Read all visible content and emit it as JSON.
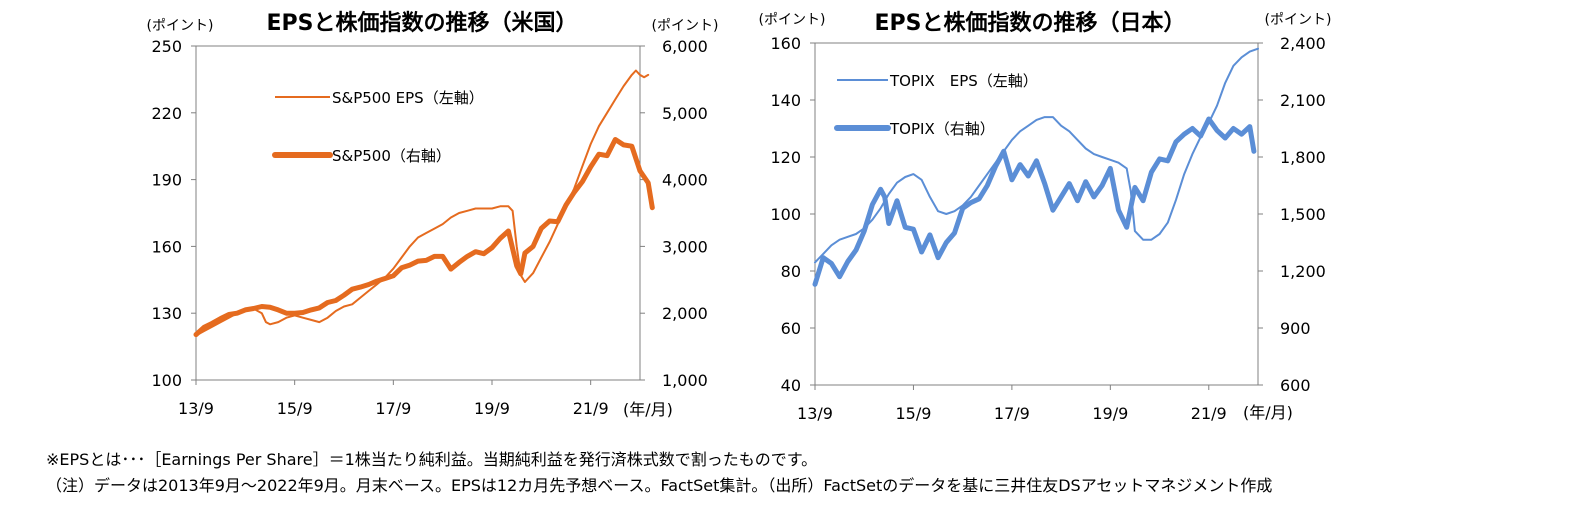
{
  "chart_data": [
    {
      "type": "line",
      "title": "EPSと株価指数の推移（米国）",
      "left_unit": "(ポイント)",
      "right_unit": "(ポイント)",
      "x_unit": "(年/月)",
      "x_ticks": [
        "13/9",
        "15/9",
        "17/9",
        "19/9",
        "21/9"
      ],
      "x_tick_months": [
        0,
        24,
        48,
        72,
        96
      ],
      "x_range": [
        0,
        108
      ],
      "left_axis": {
        "min": 100,
        "max": 250,
        "ticks": [
          "100",
          "130",
          "160",
          "190",
          "220",
          "250"
        ],
        "tick_values": [
          100,
          130,
          160,
          190,
          220,
          250
        ]
      },
      "right_axis": {
        "min": 1000,
        "max": 6000,
        "ticks": [
          "1,000",
          "2,000",
          "3,000",
          "4,000",
          "5,000",
          "6,000"
        ],
        "tick_values": [
          1000,
          2000,
          3000,
          4000,
          5000,
          6000
        ]
      },
      "color": "#E56B1F",
      "series": [
        {
          "name": "S&P500 EPS（左軸）",
          "axis": "left",
          "style": "thin",
          "points": [
            [
              0,
              120
            ],
            [
              2,
              122
            ],
            [
              4,
              124
            ],
            [
              6,
              126
            ],
            [
              8,
              128
            ],
            [
              10,
              130
            ],
            [
              12,
              131
            ],
            [
              14,
              132
            ],
            [
              16,
              130
            ],
            [
              17,
              126
            ],
            [
              18,
              125
            ],
            [
              20,
              126
            ],
            [
              22,
              128
            ],
            [
              24,
              129
            ],
            [
              26,
              128
            ],
            [
              28,
              127
            ],
            [
              30,
              126
            ],
            [
              32,
              128
            ],
            [
              34,
              131
            ],
            [
              36,
              133
            ],
            [
              38,
              134
            ],
            [
              40,
              137
            ],
            [
              42,
              140
            ],
            [
              44,
              143
            ],
            [
              46,
              146
            ],
            [
              48,
              150
            ],
            [
              50,
              155
            ],
            [
              52,
              160
            ],
            [
              54,
              164
            ],
            [
              56,
              166
            ],
            [
              58,
              168
            ],
            [
              60,
              170
            ],
            [
              62,
              173
            ],
            [
              64,
              175
            ],
            [
              66,
              176
            ],
            [
              68,
              177
            ],
            [
              70,
              177
            ],
            [
              72,
              177
            ],
            [
              74,
              178
            ],
            [
              76,
              178
            ],
            [
              77,
              176
            ],
            [
              78,
              160
            ],
            [
              79,
              147
            ],
            [
              80,
              144
            ],
            [
              82,
              148
            ],
            [
              84,
              155
            ],
            [
              86,
              162
            ],
            [
              88,
              170
            ],
            [
              90,
              178
            ],
            [
              92,
              186
            ],
            [
              94,
              196
            ],
            [
              96,
              206
            ],
            [
              98,
              214
            ],
            [
              100,
              220
            ],
            [
              102,
              226
            ],
            [
              104,
              232
            ],
            [
              106,
              237
            ],
            [
              107,
              239
            ],
            [
              108,
              237
            ],
            [
              109,
              236
            ],
            [
              110,
              237
            ]
          ]
        },
        {
          "name": "S&P500（右軸）",
          "axis": "right",
          "style": "thick",
          "points": [
            [
              0,
              1680
            ],
            [
              2,
              1790
            ],
            [
              4,
              1850
            ],
            [
              6,
              1920
            ],
            [
              8,
              1980
            ],
            [
              10,
              2000
            ],
            [
              12,
              2050
            ],
            [
              14,
              2070
            ],
            [
              16,
              2100
            ],
            [
              18,
              2090
            ],
            [
              20,
              2050
            ],
            [
              22,
              2000
            ],
            [
              24,
              2000
            ],
            [
              26,
              2010
            ],
            [
              28,
              2050
            ],
            [
              30,
              2080
            ],
            [
              32,
              2160
            ],
            [
              34,
              2190
            ],
            [
              36,
              2270
            ],
            [
              38,
              2360
            ],
            [
              40,
              2390
            ],
            [
              42,
              2430
            ],
            [
              44,
              2480
            ],
            [
              46,
              2520
            ],
            [
              48,
              2560
            ],
            [
              50,
              2680
            ],
            [
              52,
              2720
            ],
            [
              54,
              2780
            ],
            [
              56,
              2790
            ],
            [
              58,
              2850
            ],
            [
              60,
              2850
            ],
            [
              62,
              2660
            ],
            [
              64,
              2760
            ],
            [
              66,
              2850
            ],
            [
              68,
              2920
            ],
            [
              70,
              2890
            ],
            [
              72,
              2980
            ],
            [
              74,
              3120
            ],
            [
              76,
              3230
            ],
            [
              78,
              2710
            ],
            [
              79,
              2590
            ],
            [
              80,
              2900
            ],
            [
              82,
              3000
            ],
            [
              84,
              3270
            ],
            [
              86,
              3380
            ],
            [
              88,
              3370
            ],
            [
              90,
              3620
            ],
            [
              92,
              3810
            ],
            [
              94,
              3970
            ],
            [
              96,
              4190
            ],
            [
              98,
              4380
            ],
            [
              100,
              4360
            ],
            [
              102,
              4600
            ],
            [
              104,
              4520
            ],
            [
              106,
              4500
            ],
            [
              108,
              4130
            ],
            [
              110,
              3950
            ],
            [
              111,
              3580
            ]
          ]
        }
      ]
    },
    {
      "type": "line",
      "title": "EPSと株価指数の推移（日本）",
      "left_unit": "(ポイント)",
      "right_unit": "(ポイント)",
      "x_unit": "(年/月)",
      "x_ticks": [
        "13/9",
        "15/9",
        "17/9",
        "19/9",
        "21/9"
      ],
      "x_tick_months": [
        0,
        24,
        48,
        72,
        96
      ],
      "x_range": [
        0,
        108
      ],
      "left_axis": {
        "min": 40,
        "max": 160,
        "ticks": [
          "40",
          "60",
          "80",
          "100",
          "120",
          "140",
          "160"
        ],
        "tick_values": [
          40,
          60,
          80,
          100,
          120,
          140,
          160
        ]
      },
      "right_axis": {
        "min": 600,
        "max": 2400,
        "ticks": [
          "600",
          "900",
          "1,200",
          "1,500",
          "1,800",
          "2,100",
          "2,400"
        ],
        "tick_values": [
          600,
          900,
          1200,
          1500,
          1800,
          2100,
          2400
        ]
      },
      "color": "#5B8ED6",
      "series": [
        {
          "name": "TOPIX　EPS（左軸）",
          "axis": "left",
          "style": "thin",
          "points": [
            [
              0,
              83
            ],
            [
              2,
              86
            ],
            [
              4,
              89
            ],
            [
              6,
              91
            ],
            [
              8,
              92
            ],
            [
              10,
              93
            ],
            [
              12,
              95
            ],
            [
              14,
              98
            ],
            [
              16,
              102
            ],
            [
              18,
              107
            ],
            [
              20,
              111
            ],
            [
              22,
              113
            ],
            [
              24,
              114
            ],
            [
              26,
              112
            ],
            [
              28,
              106
            ],
            [
              30,
              101
            ],
            [
              32,
              100
            ],
            [
              34,
              101
            ],
            [
              36,
              103
            ],
            [
              38,
              106
            ],
            [
              40,
              110
            ],
            [
              42,
              114
            ],
            [
              44,
              118
            ],
            [
              46,
              122
            ],
            [
              48,
              126
            ],
            [
              50,
              129
            ],
            [
              52,
              131
            ],
            [
              54,
              133
            ],
            [
              56,
              134
            ],
            [
              58,
              134
            ],
            [
              60,
              131
            ],
            [
              62,
              129
            ],
            [
              64,
              126
            ],
            [
              66,
              123
            ],
            [
              68,
              121
            ],
            [
              70,
              120
            ],
            [
              72,
              119
            ],
            [
              74,
              118
            ],
            [
              76,
              116
            ],
            [
              77,
              108
            ],
            [
              78,
              94
            ],
            [
              80,
              91
            ],
            [
              82,
              91
            ],
            [
              84,
              93
            ],
            [
              86,
              97
            ],
            [
              88,
              105
            ],
            [
              90,
              114
            ],
            [
              92,
              121
            ],
            [
              94,
              127
            ],
            [
              96,
              132
            ],
            [
              98,
              138
            ],
            [
              100,
              146
            ],
            [
              102,
              152
            ],
            [
              104,
              155
            ],
            [
              106,
              157
            ],
            [
              108,
              158
            ]
          ]
        },
        {
          "name": "TOPIX（右軸）",
          "axis": "right",
          "style": "thick",
          "points": [
            [
              0,
              1130
            ],
            [
              2,
              1270
            ],
            [
              4,
              1240
            ],
            [
              6,
              1170
            ],
            [
              8,
              1250
            ],
            [
              10,
              1310
            ],
            [
              12,
              1410
            ],
            [
              14,
              1550
            ],
            [
              16,
              1630
            ],
            [
              17,
              1590
            ],
            [
              18,
              1450
            ],
            [
              20,
              1570
            ],
            [
              22,
              1430
            ],
            [
              24,
              1420
            ],
            [
              26,
              1300
            ],
            [
              28,
              1390
            ],
            [
              30,
              1270
            ],
            [
              32,
              1350
            ],
            [
              34,
              1400
            ],
            [
              36,
              1530
            ],
            [
              38,
              1560
            ],
            [
              40,
              1580
            ],
            [
              42,
              1650
            ],
            [
              44,
              1750
            ],
            [
              46,
              1830
            ],
            [
              48,
              1680
            ],
            [
              50,
              1760
            ],
            [
              52,
              1700
            ],
            [
              54,
              1780
            ],
            [
              56,
              1660
            ],
            [
              58,
              1520
            ],
            [
              60,
              1590
            ],
            [
              62,
              1660
            ],
            [
              64,
              1570
            ],
            [
              66,
              1670
            ],
            [
              68,
              1590
            ],
            [
              70,
              1650
            ],
            [
              72,
              1740
            ],
            [
              74,
              1520
            ],
            [
              76,
              1430
            ],
            [
              78,
              1640
            ],
            [
              80,
              1570
            ],
            [
              82,
              1720
            ],
            [
              84,
              1790
            ],
            [
              86,
              1780
            ],
            [
              88,
              1880
            ],
            [
              90,
              1920
            ],
            [
              92,
              1950
            ],
            [
              94,
              1910
            ],
            [
              96,
              2000
            ],
            [
              98,
              1940
            ],
            [
              100,
              1900
            ],
            [
              102,
              1950
            ],
            [
              104,
              1920
            ],
            [
              106,
              1960
            ],
            [
              107,
              1830
            ]
          ]
        }
      ]
    }
  ],
  "notes": {
    "line1": "※EPSとは･･･［Earnings Per Share］＝1株当たり純利益。当期純利益を発行済株式数で割ったものです。",
    "line2": "（注）データは2013年9月～2022年9月。月末ベース。EPSは12カ月先予想ベース。FactSet集計。（出所）FactSetのデータを基に三井住友DSアセットマネジメント作成"
  }
}
